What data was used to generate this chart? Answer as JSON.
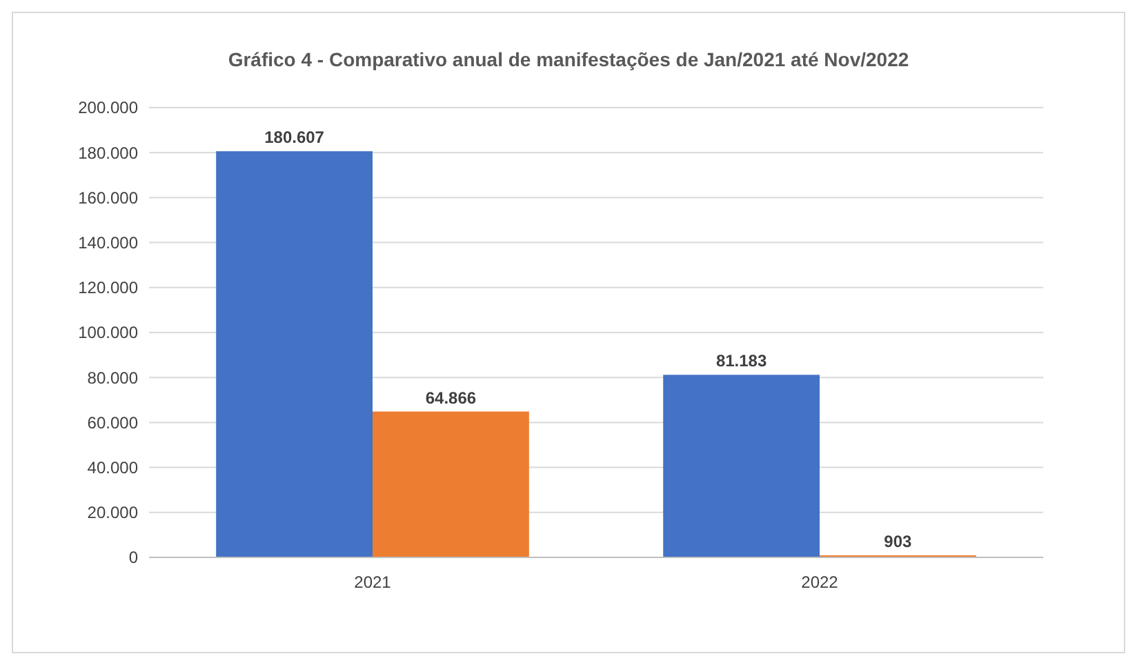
{
  "chart_data": {
    "type": "bar",
    "title": "Gráfico 4 - Comparativo anual de manifestações de Jan/2021 até Nov/2022",
    "categories": [
      "2021",
      "2022"
    ],
    "series": [
      {
        "color": "#4472c4",
        "values": [
          180607,
          81183
        ],
        "value_labels": [
          "180.607",
          "81.183"
        ]
      },
      {
        "color": "#ed7d31",
        "values": [
          64866,
          903
        ],
        "value_labels": [
          "64.866",
          "903"
        ]
      }
    ],
    "ylim": [
      0,
      200000
    ],
    "yticks": [
      0,
      {
        "value": 20000,
        "label": "20.000"
      },
      {
        "value": 40000,
        "label": "40.000"
      },
      {
        "value": 60000,
        "label": "60.000"
      },
      {
        "value": 80000,
        "label": "80.000"
      },
      {
        "value": 100000,
        "label": "100.000"
      },
      {
        "value": 120000,
        "label": "120.000"
      },
      {
        "value": 140000,
        "label": "140.000"
      },
      {
        "value": 160000,
        "label": "160.000"
      },
      {
        "value": 180000,
        "label": "180.000"
      },
      {
        "value": 200000,
        "label": "200.000"
      }
    ],
    "grid": "y"
  }
}
